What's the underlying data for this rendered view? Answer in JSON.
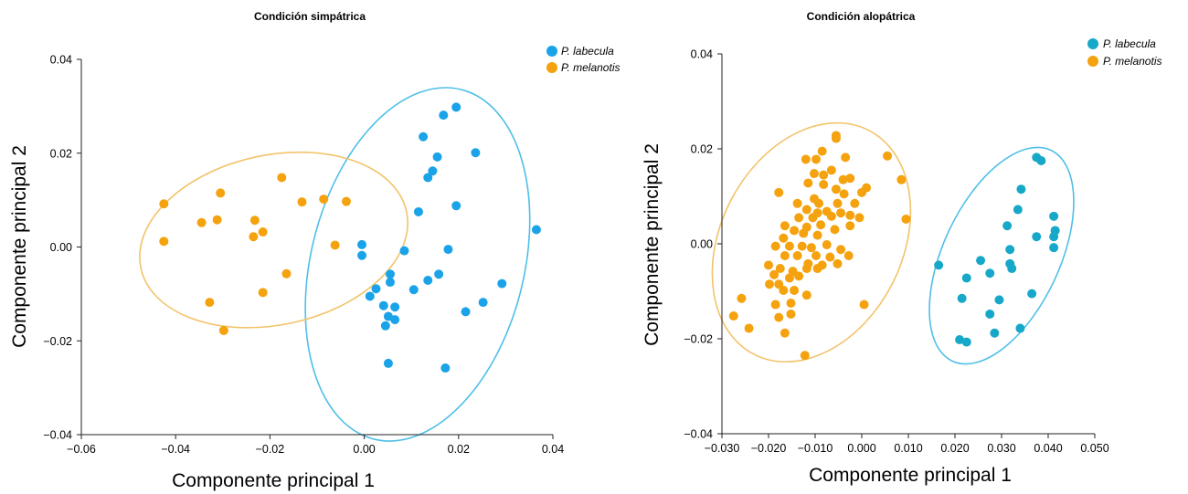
{
  "colors": {
    "labecula": "#1aa3e8",
    "melanotis": "#f5a20f",
    "ellipse_labecula": "#4fbfe8",
    "ellipse_melanotis": "#f2c36a",
    "axis": "#222222"
  },
  "chart_data": [
    {
      "type": "scatter",
      "title": "Condición simpátrica",
      "xlabel": "Componente principal 1",
      "ylabel": "Componente principal 2",
      "xlim": [
        -0.06,
        0.04
      ],
      "ylim": [
        -0.04,
        0.04
      ],
      "xticks": [
        -0.06,
        -0.04,
        -0.02,
        0.0,
        0.02,
        0.04
      ],
      "xtick_labels": [
        "−0.06",
        "−0.04",
        "−0.02",
        "0.00",
        "0.02",
        "0.04"
      ],
      "yticks": [
        -0.04,
        -0.02,
        0.0,
        0.02,
        0.04
      ],
      "ytick_labels": [
        "−0.04",
        "−0.02",
        "0.00",
        "0.02",
        "0.04"
      ],
      "grid": false,
      "legend": "top-right",
      "series": [
        {
          "name": "P. labecula",
          "color": "#1aa3e8",
          "points": [
            [
              0.0195,
              0.0298
            ],
            [
              0.0168,
              0.0281
            ],
            [
              0.0236,
              0.0201
            ],
            [
              0.0155,
              0.0192
            ],
            [
              0.0145,
              0.0162
            ],
            [
              0.0135,
              0.0148
            ],
            [
              0.0125,
              0.0235
            ],
            [
              0.0195,
              0.0088
            ],
            [
              0.0115,
              0.0075
            ],
            [
              0.0365,
              0.0037
            ],
            [
              -0.0005,
              0.0005
            ],
            [
              -0.0005,
              -0.0018
            ],
            [
              0.0085,
              -0.0008
            ],
            [
              0.0178,
              -0.0005
            ],
            [
              0.0055,
              -0.0058
            ],
            [
              0.0055,
              -0.0075
            ],
            [
              0.0158,
              -0.0058
            ],
            [
              0.0135,
              -0.0071
            ],
            [
              0.0105,
              -0.0091
            ],
            [
              0.0012,
              -0.0105
            ],
            [
              0.0025,
              -0.0089
            ],
            [
              0.0041,
              -0.0125
            ],
            [
              0.0065,
              -0.0128
            ],
            [
              0.0051,
              -0.0148
            ],
            [
              0.0065,
              -0.0155
            ],
            [
              0.0045,
              -0.0168
            ],
            [
              0.0252,
              -0.0118
            ],
            [
              0.0292,
              -0.0078
            ],
            [
              0.0215,
              -0.0138
            ],
            [
              0.0051,
              -0.0248
            ],
            [
              0.0172,
              -0.0258
            ]
          ]
        },
        {
          "name": "P. melanotis",
          "color": "#f5a20f",
          "points": [
            [
              -0.0425,
              0.0092
            ],
            [
              -0.0425,
              0.0012
            ],
            [
              -0.0305,
              0.0115
            ],
            [
              -0.0345,
              0.0052
            ],
            [
              -0.0312,
              0.0058
            ],
            [
              -0.0175,
              0.0148
            ],
            [
              -0.0132,
              0.0096
            ],
            [
              -0.0086,
              0.0102
            ],
            [
              -0.0038,
              0.0097
            ],
            [
              -0.0232,
              0.0057
            ],
            [
              -0.0215,
              0.0032
            ],
            [
              -0.0235,
              0.0022
            ],
            [
              -0.0062,
              0.0004
            ],
            [
              -0.0165,
              -0.0057
            ],
            [
              -0.0215,
              -0.0097
            ],
            [
              -0.0328,
              -0.0118
            ],
            [
              -0.0298,
              -0.0178
            ]
          ]
        }
      ],
      "ellipses": [
        {
          "series": "P. labecula",
          "center": [
            0.0113,
            -0.0037
          ],
          "rx": 0.0226,
          "ry": 0.0384,
          "angle_deg": 14
        },
        {
          "series": "P. melanotis",
          "center": [
            -0.0192,
            0.0015
          ],
          "rx": 0.0288,
          "ry": 0.0181,
          "angle_deg": -12
        }
      ]
    },
    {
      "type": "scatter",
      "title": "Condición alopátrica",
      "xlabel": "Componente principal 1",
      "ylabel": "Componente principal 2",
      "xlim": [
        -0.03,
        0.05
      ],
      "ylim": [
        -0.04,
        0.04
      ],
      "xticks": [
        -0.03,
        -0.02,
        -0.01,
        0.0,
        0.01,
        0.02,
        0.03,
        0.04,
        0.05
      ],
      "xtick_labels": [
        "−0.030",
        "−0.020",
        "−0.010",
        "0.000",
        "0.010",
        "0.020",
        "0.030",
        "0.040",
        "0.050"
      ],
      "yticks": [
        -0.04,
        -0.02,
        0.0,
        0.02,
        0.04
      ],
      "ytick_labels": [
        "−0.04",
        "−0.02",
        "0.00",
        "0.02",
        "0.04"
      ],
      "grid": false,
      "legend": "top-right",
      "series": [
        {
          "name": "P. labecula",
          "color": "#17a8c9",
          "points": [
            [
              0.0375,
              0.0182
            ],
            [
              0.0385,
              0.0175
            ],
            [
              0.0342,
              0.0115
            ],
            [
              0.0335,
              0.0072
            ],
            [
              0.0412,
              0.0058
            ],
            [
              0.0312,
              0.0038
            ],
            [
              0.0415,
              0.0028
            ],
            [
              0.0412,
              0.0015
            ],
            [
              0.0375,
              0.0015
            ],
            [
              0.0412,
              -0.0008
            ],
            [
              0.0318,
              -0.0012
            ],
            [
              0.0255,
              -0.0035
            ],
            [
              0.0318,
              -0.0042
            ],
            [
              0.0322,
              -0.0052
            ],
            [
              0.0165,
              -0.0045
            ],
            [
              0.0225,
              -0.0072
            ],
            [
              0.0275,
              -0.0062
            ],
            [
              0.0295,
              -0.0118
            ],
            [
              0.0365,
              -0.0105
            ],
            [
              0.0215,
              -0.0115
            ],
            [
              0.0275,
              -0.0148
            ],
            [
              0.034,
              -0.0178
            ],
            [
              0.0285,
              -0.0188
            ],
            [
              0.021,
              -0.0202
            ],
            [
              0.0225,
              -0.0207
            ]
          ]
        },
        {
          "name": "P. melanotis",
          "color": "#f5a20f",
          "points": [
            [
              -0.0055,
              0.0228
            ],
            [
              -0.0055,
              0.0222
            ],
            [
              -0.0085,
              0.0195
            ],
            [
              -0.012,
              0.0178
            ],
            [
              -0.0098,
              0.0178
            ],
            [
              -0.0035,
              0.0182
            ],
            [
              -0.0065,
              0.0155
            ],
            [
              0.0055,
              0.0185
            ],
            [
              -0.0102,
              0.0148
            ],
            [
              -0.0082,
              0.0145
            ],
            [
              -0.004,
              0.0135
            ],
            [
              -0.0025,
              0.0138
            ],
            [
              -0.0115,
              0.0128
            ],
            [
              -0.0082,
              0.0125
            ],
            [
              0.0085,
              0.0135
            ],
            [
              -0.0055,
              0.0115
            ],
            [
              0.001,
              0.0118
            ],
            [
              -0.0178,
              0.0108
            ],
            [
              -0.0102,
              0.0095
            ],
            [
              -0.0038,
              0.0105
            ],
            [
              0.0,
              0.0108
            ],
            [
              -0.0138,
              0.0085
            ],
            [
              -0.0092,
              0.0085
            ],
            [
              -0.0052,
              0.0085
            ],
            [
              -0.0015,
              0.0085
            ],
            [
              -0.0118,
              0.0072
            ],
            [
              -0.0095,
              0.0065
            ],
            [
              -0.0075,
              0.0068
            ],
            [
              -0.0045,
              0.0065
            ],
            [
              -0.0025,
              0.006
            ],
            [
              -0.0135,
              0.0055
            ],
            [
              -0.0105,
              0.0055
            ],
            [
              -0.0065,
              0.0058
            ],
            [
              -0.0005,
              0.0055
            ],
            [
              0.0095,
              0.0052
            ],
            [
              -0.0165,
              0.0038
            ],
            [
              -0.0118,
              0.0035
            ],
            [
              -0.0088,
              0.004
            ],
            [
              -0.0058,
              0.003
            ],
            [
              -0.0025,
              0.0038
            ],
            [
              -0.0145,
              0.0028
            ],
            [
              -0.0125,
              0.0022
            ],
            [
              -0.0095,
              0.0018
            ],
            [
              -0.0168,
              0.0012
            ],
            [
              -0.0185,
              -0.0005
            ],
            [
              -0.0155,
              -0.0005
            ],
            [
              -0.0128,
              -0.0005
            ],
            [
              -0.0108,
              -0.0008
            ],
            [
              -0.0075,
              -0.0002
            ],
            [
              -0.0045,
              -0.0012
            ],
            [
              -0.0165,
              -0.0025
            ],
            [
              -0.0138,
              -0.0025
            ],
            [
              -0.0098,
              -0.0025
            ],
            [
              -0.0068,
              -0.0028
            ],
            [
              -0.0028,
              -0.0025
            ],
            [
              -0.0115,
              -0.0042
            ],
            [
              -0.0085,
              -0.0045
            ],
            [
              -0.0052,
              -0.0042
            ],
            [
              -0.02,
              -0.0045
            ],
            [
              -0.0175,
              -0.0052
            ],
            [
              -0.0148,
              -0.0058
            ],
            [
              -0.0118,
              -0.0052
            ],
            [
              -0.0095,
              -0.0052
            ],
            [
              -0.0188,
              -0.0065
            ],
            [
              -0.0155,
              -0.0072
            ],
            [
              -0.0135,
              -0.0068
            ],
            [
              -0.0198,
              -0.0085
            ],
            [
              -0.0178,
              -0.0085
            ],
            [
              -0.0168,
              -0.0098
            ],
            [
              -0.0145,
              -0.0098
            ],
            [
              -0.0118,
              -0.0108
            ],
            [
              -0.0258,
              -0.0115
            ],
            [
              -0.0152,
              -0.0125
            ],
            [
              -0.0185,
              -0.0128
            ],
            [
              0.0005,
              -0.0128
            ],
            [
              -0.0275,
              -0.0152
            ],
            [
              -0.0178,
              -0.0155
            ],
            [
              -0.0152,
              -0.0148
            ],
            [
              -0.0242,
              -0.0178
            ],
            [
              -0.0165,
              -0.0188
            ],
            [
              -0.0122,
              -0.0235
            ]
          ]
        }
      ],
      "ellipses": [
        {
          "series": "P. labecula",
          "center": [
            0.03,
            -0.0025
          ],
          "rx": 0.0125,
          "ry": 0.0245,
          "angle_deg": 25
        },
        {
          "series": "P. melanotis",
          "center": [
            -0.0108,
            0.0003
          ],
          "rx": 0.0195,
          "ry": 0.0265,
          "angle_deg": 27
        }
      ]
    }
  ]
}
